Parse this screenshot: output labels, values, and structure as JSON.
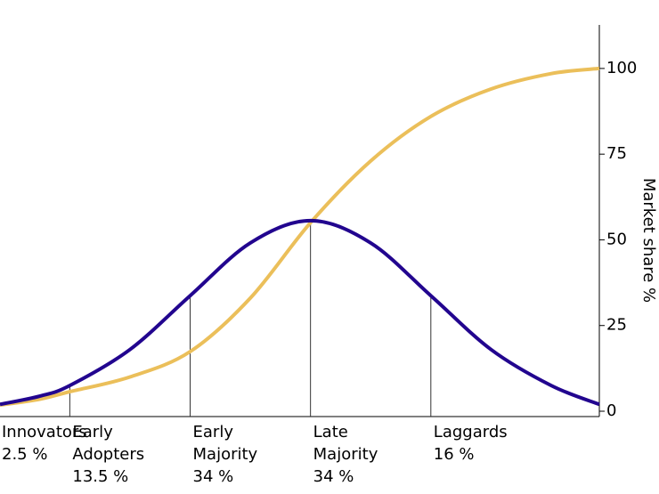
{
  "chart_data": {
    "type": "line",
    "y_axis_label": "Market share %",
    "xlim": [
      -2.58,
      2.4
    ],
    "ylim": [
      0,
      112.7
    ],
    "yticks": [
      0,
      25,
      50,
      75,
      100
    ],
    "x": [
      -2.58,
      -2.25,
      -2,
      -1.5,
      -1,
      -0.5,
      0,
      0.5,
      1,
      1.5,
      2,
      2.4
    ],
    "series": [
      {
        "color": "#22058f",
        "values": [
          2.0,
          4.4,
          7.5,
          18.0,
          33.7,
          49.1,
          55.6,
          49.1,
          33.7,
          18.0,
          7.5,
          2.0
        ]
      },
      {
        "color": "#ebbf5a",
        "values": [
          1.8,
          3.5,
          5.7,
          10,
          17.4,
          33,
          55,
          73,
          86,
          94,
          98.5,
          100
        ]
      }
    ],
    "dividers": [
      -2,
      -1,
      0,
      1
    ],
    "categories": [
      [
        "Innovators"
      ],
      [
        "Early",
        "Adopters"
      ],
      [
        "Early",
        "Majority"
      ],
      [
        "Late",
        "Majority"
      ],
      [
        "Laggards"
      ]
    ],
    "values": [
      2.5,
      13.5,
      34,
      34,
      16
    ],
    "value_labels": [
      "2.5 %",
      "13.5 %",
      "34 %",
      "34 %",
      "16 %"
    ]
  }
}
